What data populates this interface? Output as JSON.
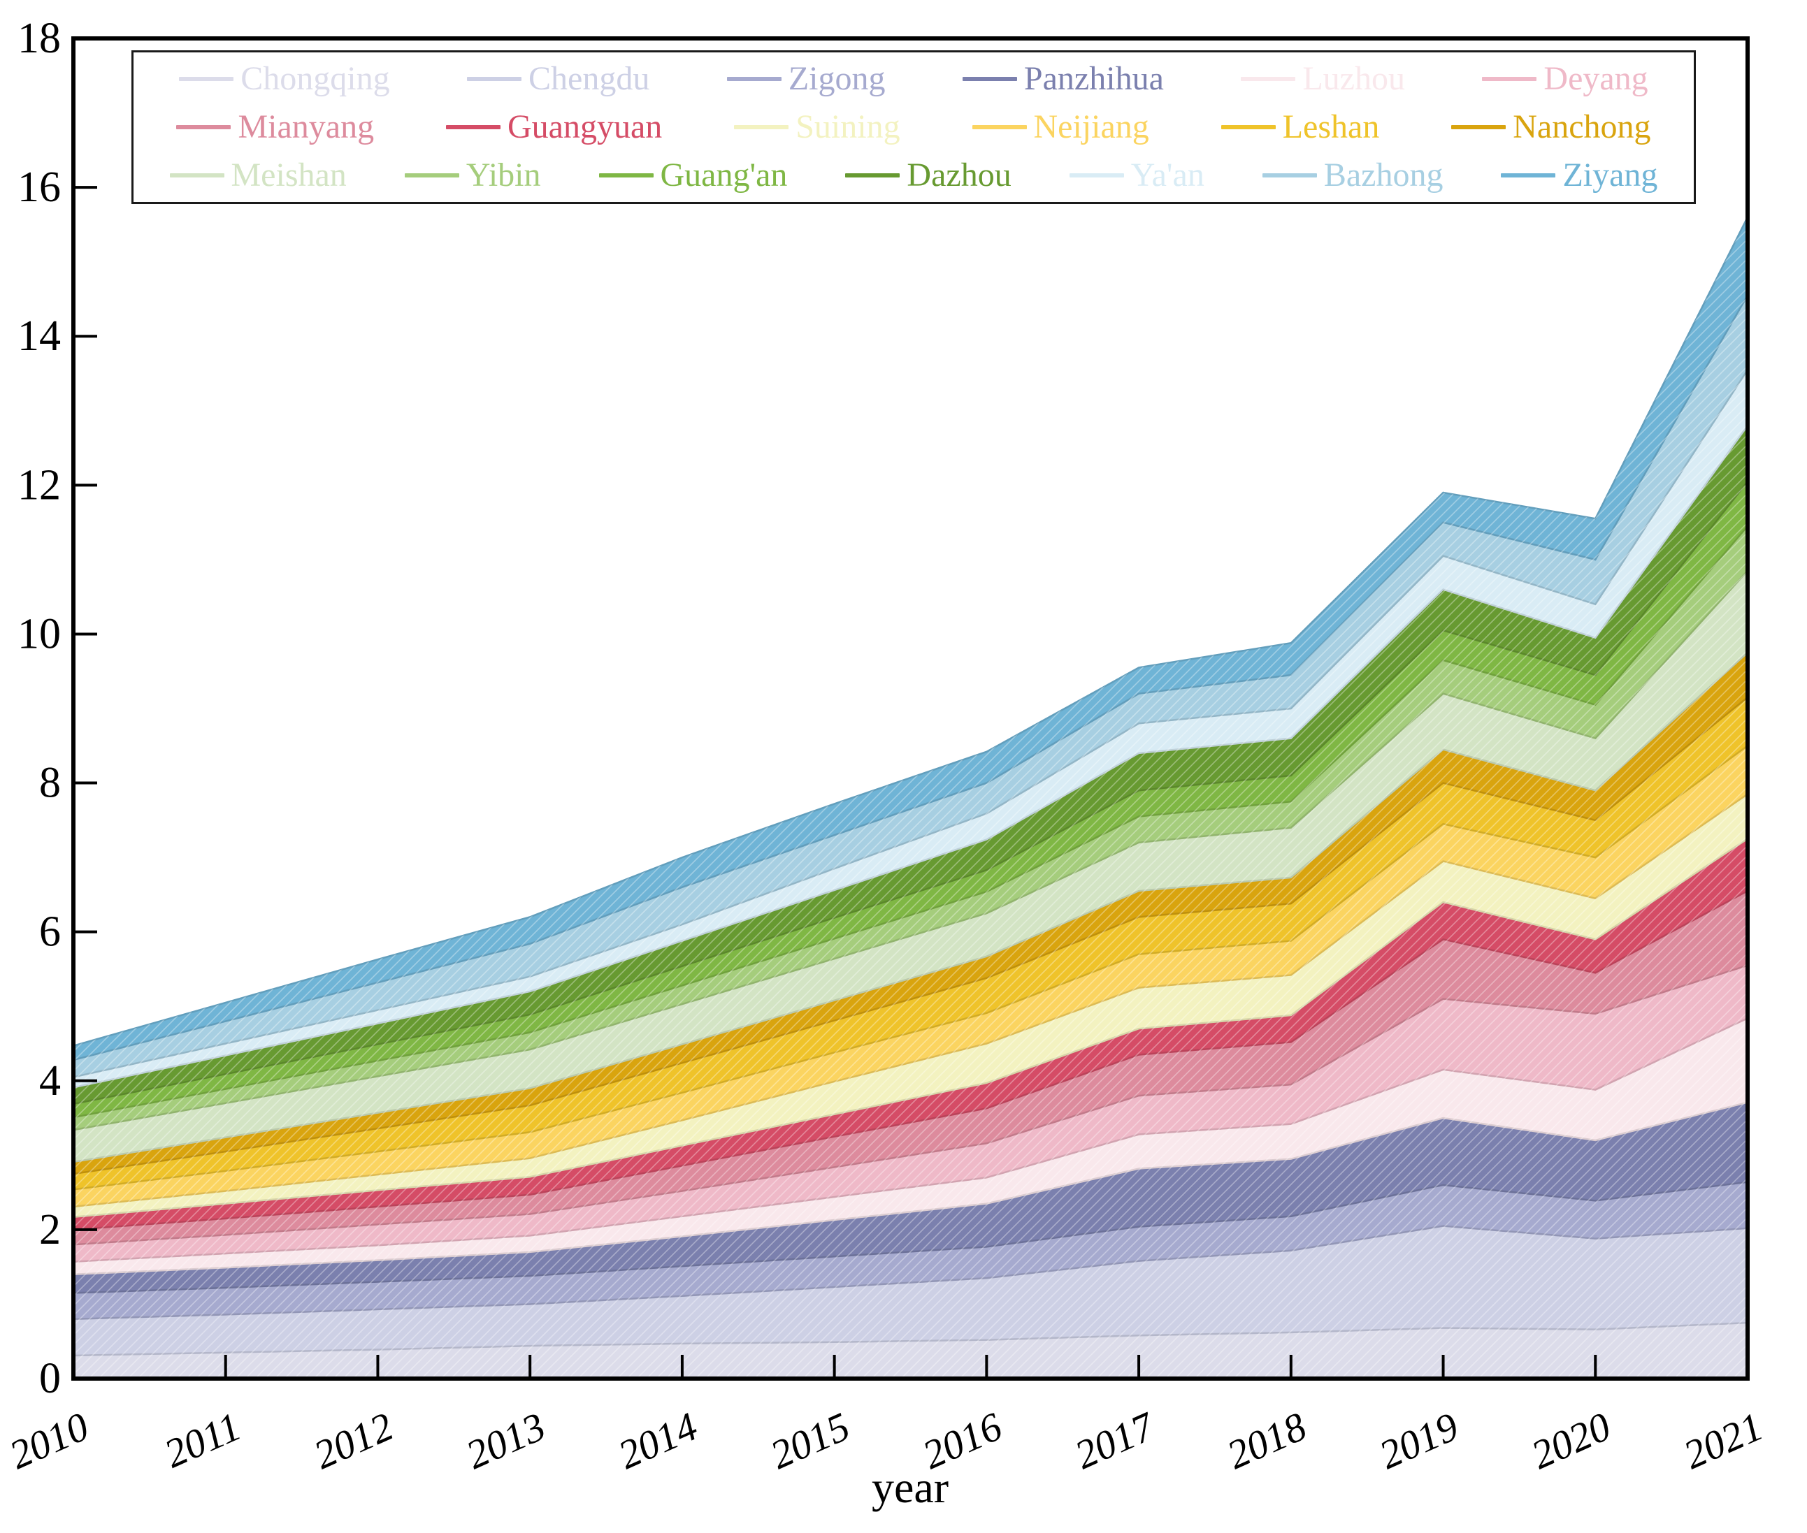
{
  "figure": {
    "xlabel": "year",
    "background_color": "#ffffff",
    "frame_color": "#000000"
  },
  "axes": {
    "y_tick_labels": [
      "0",
      "2",
      "4",
      "6",
      "8",
      "10",
      "12",
      "14",
      "16",
      "18"
    ],
    "y_ticks": [
      0,
      2,
      4,
      6,
      8,
      10,
      12,
      14,
      16,
      18
    ],
    "x_tick_labels": [
      "2010",
      "2011",
      "2012",
      "2013",
      "2014",
      "2015",
      "2016",
      "2017",
      "2018",
      "2019",
      "2020",
      "2021"
    ],
    "ylim": [
      0,
      18
    ],
    "tick_direction": "in"
  },
  "legend": {
    "rows": [
      6,
      6,
      7
    ],
    "border_color": "#1a1a1a"
  },
  "chart_data": {
    "type": "area",
    "stacked": true,
    "title": "",
    "xlabel": "year",
    "ylabel": "",
    "ylim": [
      0,
      18
    ],
    "grid": false,
    "legend_position": "upper left inside, 3 rows",
    "x": [
      2010,
      2011,
      2012,
      2013,
      2014,
      2015,
      2016,
      2017,
      2018,
      2019,
      2020,
      2021
    ],
    "series": [
      {
        "name": "Chongqing",
        "color": "#dcdcea",
        "values": [
          0.31,
          0.35,
          0.39,
          0.44,
          0.47,
          0.49,
          0.52,
          0.58,
          0.62,
          0.68,
          0.66,
          0.75
        ]
      },
      {
        "name": "Chengdu",
        "color": "#cdd0e5",
        "values": [
          0.49,
          0.51,
          0.54,
          0.56,
          0.64,
          0.74,
          0.83,
          1.0,
          1.1,
          1.37,
          1.22,
          1.27
        ]
      },
      {
        "name": "Zigong",
        "color": "#a6aacf",
        "values": [
          0.35,
          0.36,
          0.37,
          0.38,
          0.4,
          0.41,
          0.42,
          0.46,
          0.46,
          0.55,
          0.51,
          0.62
        ]
      },
      {
        "name": "Panzhihua",
        "color": "#7b80ae",
        "values": [
          0.25,
          0.27,
          0.29,
          0.32,
          0.4,
          0.49,
          0.58,
          0.78,
          0.77,
          0.9,
          0.81,
          1.07
        ]
      },
      {
        "name": "Luzhou",
        "color": "#f9e8ec",
        "values": [
          0.17,
          0.19,
          0.2,
          0.22,
          0.27,
          0.31,
          0.35,
          0.46,
          0.47,
          0.65,
          0.68,
          1.13
        ]
      },
      {
        "name": "Deyang",
        "color": "#efb9c8",
        "values": [
          0.23,
          0.25,
          0.28,
          0.29,
          0.34,
          0.4,
          0.46,
          0.52,
          0.53,
          0.95,
          1.02,
          0.71
        ]
      },
      {
        "name": "Mianyang",
        "color": "#dd8b9d",
        "values": [
          0.2,
          0.22,
          0.24,
          0.26,
          0.34,
          0.41,
          0.47,
          0.55,
          0.57,
          0.8,
          0.55,
          1.0
        ]
      },
      {
        "name": "Guangyuan",
        "color": "#d54c66",
        "values": [
          0.17,
          0.2,
          0.22,
          0.24,
          0.27,
          0.3,
          0.34,
          0.35,
          0.36,
          0.5,
          0.45,
          0.7
        ]
      },
      {
        "name": "Suining",
        "color": "#f3f2c0",
        "values": [
          0.14,
          0.17,
          0.21,
          0.25,
          0.34,
          0.44,
          0.53,
          0.55,
          0.54,
          0.55,
          0.55,
          0.6
        ]
      },
      {
        "name": "Neijiang",
        "color": "#fbd460",
        "values": [
          0.23,
          0.27,
          0.31,
          0.35,
          0.37,
          0.39,
          0.41,
          0.45,
          0.46,
          0.5,
          0.55,
          0.65
        ]
      },
      {
        "name": "Leshan",
        "color": "#efc32a",
        "values": [
          0.21,
          0.26,
          0.31,
          0.36,
          0.4,
          0.43,
          0.47,
          0.5,
          0.5,
          0.55,
          0.5,
          0.65
        ]
      },
      {
        "name": "Nanchong",
        "color": "#d9a40e",
        "values": [
          0.16,
          0.19,
          0.21,
          0.23,
          0.25,
          0.27,
          0.29,
          0.35,
          0.35,
          0.45,
          0.4,
          0.6
        ]
      },
      {
        "name": "Meishan",
        "color": "#d3e4c4",
        "values": [
          0.43,
          0.46,
          0.49,
          0.52,
          0.54,
          0.56,
          0.58,
          0.65,
          0.67,
          0.75,
          0.7,
          1.1
        ]
      },
      {
        "name": "Yibin",
        "color": "#a5cd7c",
        "values": [
          0.17,
          0.19,
          0.21,
          0.23,
          0.25,
          0.27,
          0.29,
          0.35,
          0.35,
          0.45,
          0.45,
          0.6
        ]
      },
      {
        "name": "Guang'an",
        "color": "#7fb744",
        "values": [
          0.18,
          0.2,
          0.22,
          0.24,
          0.26,
          0.28,
          0.29,
          0.35,
          0.35,
          0.4,
          0.4,
          0.6
        ]
      },
      {
        "name": "Dazhou",
        "color": "#679a31",
        "values": [
          0.22,
          0.25,
          0.28,
          0.31,
          0.34,
          0.37,
          0.41,
          0.5,
          0.5,
          0.55,
          0.5,
          0.75
        ]
      },
      {
        "name": "Ya'an",
        "color": "#d9ecf5",
        "values": [
          0.14,
          0.16,
          0.18,
          0.2,
          0.22,
          0.29,
          0.35,
          0.4,
          0.4,
          0.45,
          0.45,
          0.75
        ]
      },
      {
        "name": "Bazhong",
        "color": "#a7cfe2",
        "values": [
          0.23,
          0.3,
          0.37,
          0.44,
          0.5,
          0.45,
          0.41,
          0.4,
          0.45,
          0.45,
          0.6,
          1.0
        ]
      },
      {
        "name": "Ziyang",
        "color": "#6fb4d6",
        "values": [
          0.19,
          0.25,
          0.31,
          0.36,
          0.4,
          0.42,
          0.42,
          0.35,
          0.43,
          0.4,
          0.55,
          1.05
        ]
      }
    ]
  }
}
